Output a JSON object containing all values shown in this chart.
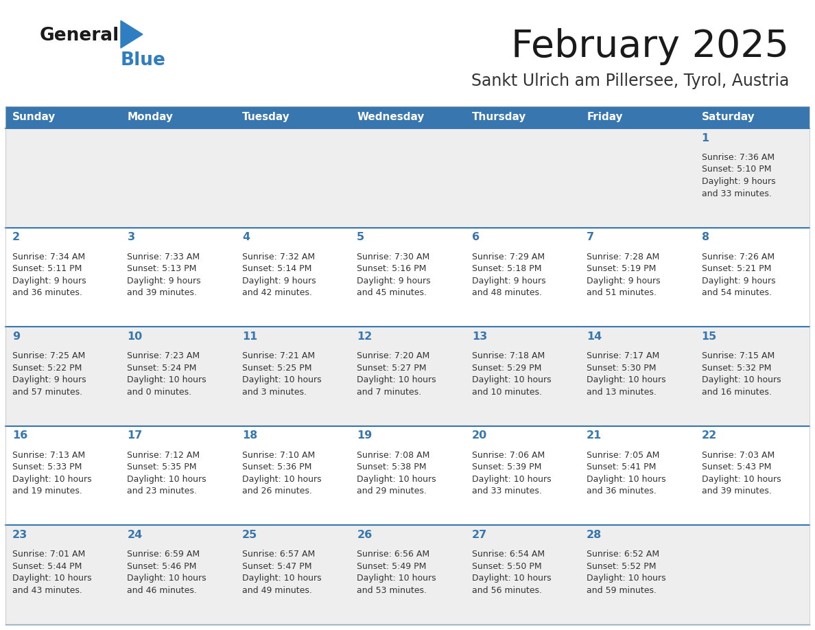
{
  "title": "February 2025",
  "subtitle": "Sankt Ulrich am Pillersee, Tyrol, Austria",
  "days_of_week": [
    "Sunday",
    "Monday",
    "Tuesday",
    "Wednesday",
    "Thursday",
    "Friday",
    "Saturday"
  ],
  "header_bg": "#3776ae",
  "header_text_color": "#ffffff",
  "cell_bg_light": "#eeeeee",
  "cell_bg_white": "#ffffff",
  "day_number_color": "#3776ae",
  "info_text_color": "#333333",
  "separator_color": "#3776ae",
  "logo_general_color": "#1a1a1a",
  "logo_blue_color": "#2e7ec1",
  "calendar_data": [
    [
      {
        "day": null,
        "sunrise": null,
        "sunset": null,
        "daylight": null
      },
      {
        "day": null,
        "sunrise": null,
        "sunset": null,
        "daylight": null
      },
      {
        "day": null,
        "sunrise": null,
        "sunset": null,
        "daylight": null
      },
      {
        "day": null,
        "sunrise": null,
        "sunset": null,
        "daylight": null
      },
      {
        "day": null,
        "sunrise": null,
        "sunset": null,
        "daylight": null
      },
      {
        "day": null,
        "sunrise": null,
        "sunset": null,
        "daylight": null
      },
      {
        "day": 1,
        "sunrise": "7:36 AM",
        "sunset": "5:10 PM",
        "daylight": "9 hours\nand 33 minutes."
      }
    ],
    [
      {
        "day": 2,
        "sunrise": "7:34 AM",
        "sunset": "5:11 PM",
        "daylight": "9 hours\nand 36 minutes."
      },
      {
        "day": 3,
        "sunrise": "7:33 AM",
        "sunset": "5:13 PM",
        "daylight": "9 hours\nand 39 minutes."
      },
      {
        "day": 4,
        "sunrise": "7:32 AM",
        "sunset": "5:14 PM",
        "daylight": "9 hours\nand 42 minutes."
      },
      {
        "day": 5,
        "sunrise": "7:30 AM",
        "sunset": "5:16 PM",
        "daylight": "9 hours\nand 45 minutes."
      },
      {
        "day": 6,
        "sunrise": "7:29 AM",
        "sunset": "5:18 PM",
        "daylight": "9 hours\nand 48 minutes."
      },
      {
        "day": 7,
        "sunrise": "7:28 AM",
        "sunset": "5:19 PM",
        "daylight": "9 hours\nand 51 minutes."
      },
      {
        "day": 8,
        "sunrise": "7:26 AM",
        "sunset": "5:21 PM",
        "daylight": "9 hours\nand 54 minutes."
      }
    ],
    [
      {
        "day": 9,
        "sunrise": "7:25 AM",
        "sunset": "5:22 PM",
        "daylight": "9 hours\nand 57 minutes."
      },
      {
        "day": 10,
        "sunrise": "7:23 AM",
        "sunset": "5:24 PM",
        "daylight": "10 hours\nand 0 minutes."
      },
      {
        "day": 11,
        "sunrise": "7:21 AM",
        "sunset": "5:25 PM",
        "daylight": "10 hours\nand 3 minutes."
      },
      {
        "day": 12,
        "sunrise": "7:20 AM",
        "sunset": "5:27 PM",
        "daylight": "10 hours\nand 7 minutes."
      },
      {
        "day": 13,
        "sunrise": "7:18 AM",
        "sunset": "5:29 PM",
        "daylight": "10 hours\nand 10 minutes."
      },
      {
        "day": 14,
        "sunrise": "7:17 AM",
        "sunset": "5:30 PM",
        "daylight": "10 hours\nand 13 minutes."
      },
      {
        "day": 15,
        "sunrise": "7:15 AM",
        "sunset": "5:32 PM",
        "daylight": "10 hours\nand 16 minutes."
      }
    ],
    [
      {
        "day": 16,
        "sunrise": "7:13 AM",
        "sunset": "5:33 PM",
        "daylight": "10 hours\nand 19 minutes."
      },
      {
        "day": 17,
        "sunrise": "7:12 AM",
        "sunset": "5:35 PM",
        "daylight": "10 hours\nand 23 minutes."
      },
      {
        "day": 18,
        "sunrise": "7:10 AM",
        "sunset": "5:36 PM",
        "daylight": "10 hours\nand 26 minutes."
      },
      {
        "day": 19,
        "sunrise": "7:08 AM",
        "sunset": "5:38 PM",
        "daylight": "10 hours\nand 29 minutes."
      },
      {
        "day": 20,
        "sunrise": "7:06 AM",
        "sunset": "5:39 PM",
        "daylight": "10 hours\nand 33 minutes."
      },
      {
        "day": 21,
        "sunrise": "7:05 AM",
        "sunset": "5:41 PM",
        "daylight": "10 hours\nand 36 minutes."
      },
      {
        "day": 22,
        "sunrise": "7:03 AM",
        "sunset": "5:43 PM",
        "daylight": "10 hours\nand 39 minutes."
      }
    ],
    [
      {
        "day": 23,
        "sunrise": "7:01 AM",
        "sunset": "5:44 PM",
        "daylight": "10 hours\nand 43 minutes."
      },
      {
        "day": 24,
        "sunrise": "6:59 AM",
        "sunset": "5:46 PM",
        "daylight": "10 hours\nand 46 minutes."
      },
      {
        "day": 25,
        "sunrise": "6:57 AM",
        "sunset": "5:47 PM",
        "daylight": "10 hours\nand 49 minutes."
      },
      {
        "day": 26,
        "sunrise": "6:56 AM",
        "sunset": "5:49 PM",
        "daylight": "10 hours\nand 53 minutes."
      },
      {
        "day": 27,
        "sunrise": "6:54 AM",
        "sunset": "5:50 PM",
        "daylight": "10 hours\nand 56 minutes."
      },
      {
        "day": 28,
        "sunrise": "6:52 AM",
        "sunset": "5:52 PM",
        "daylight": "10 hours\nand 59 minutes."
      },
      {
        "day": null,
        "sunrise": null,
        "sunset": null,
        "daylight": null
      }
    ]
  ]
}
